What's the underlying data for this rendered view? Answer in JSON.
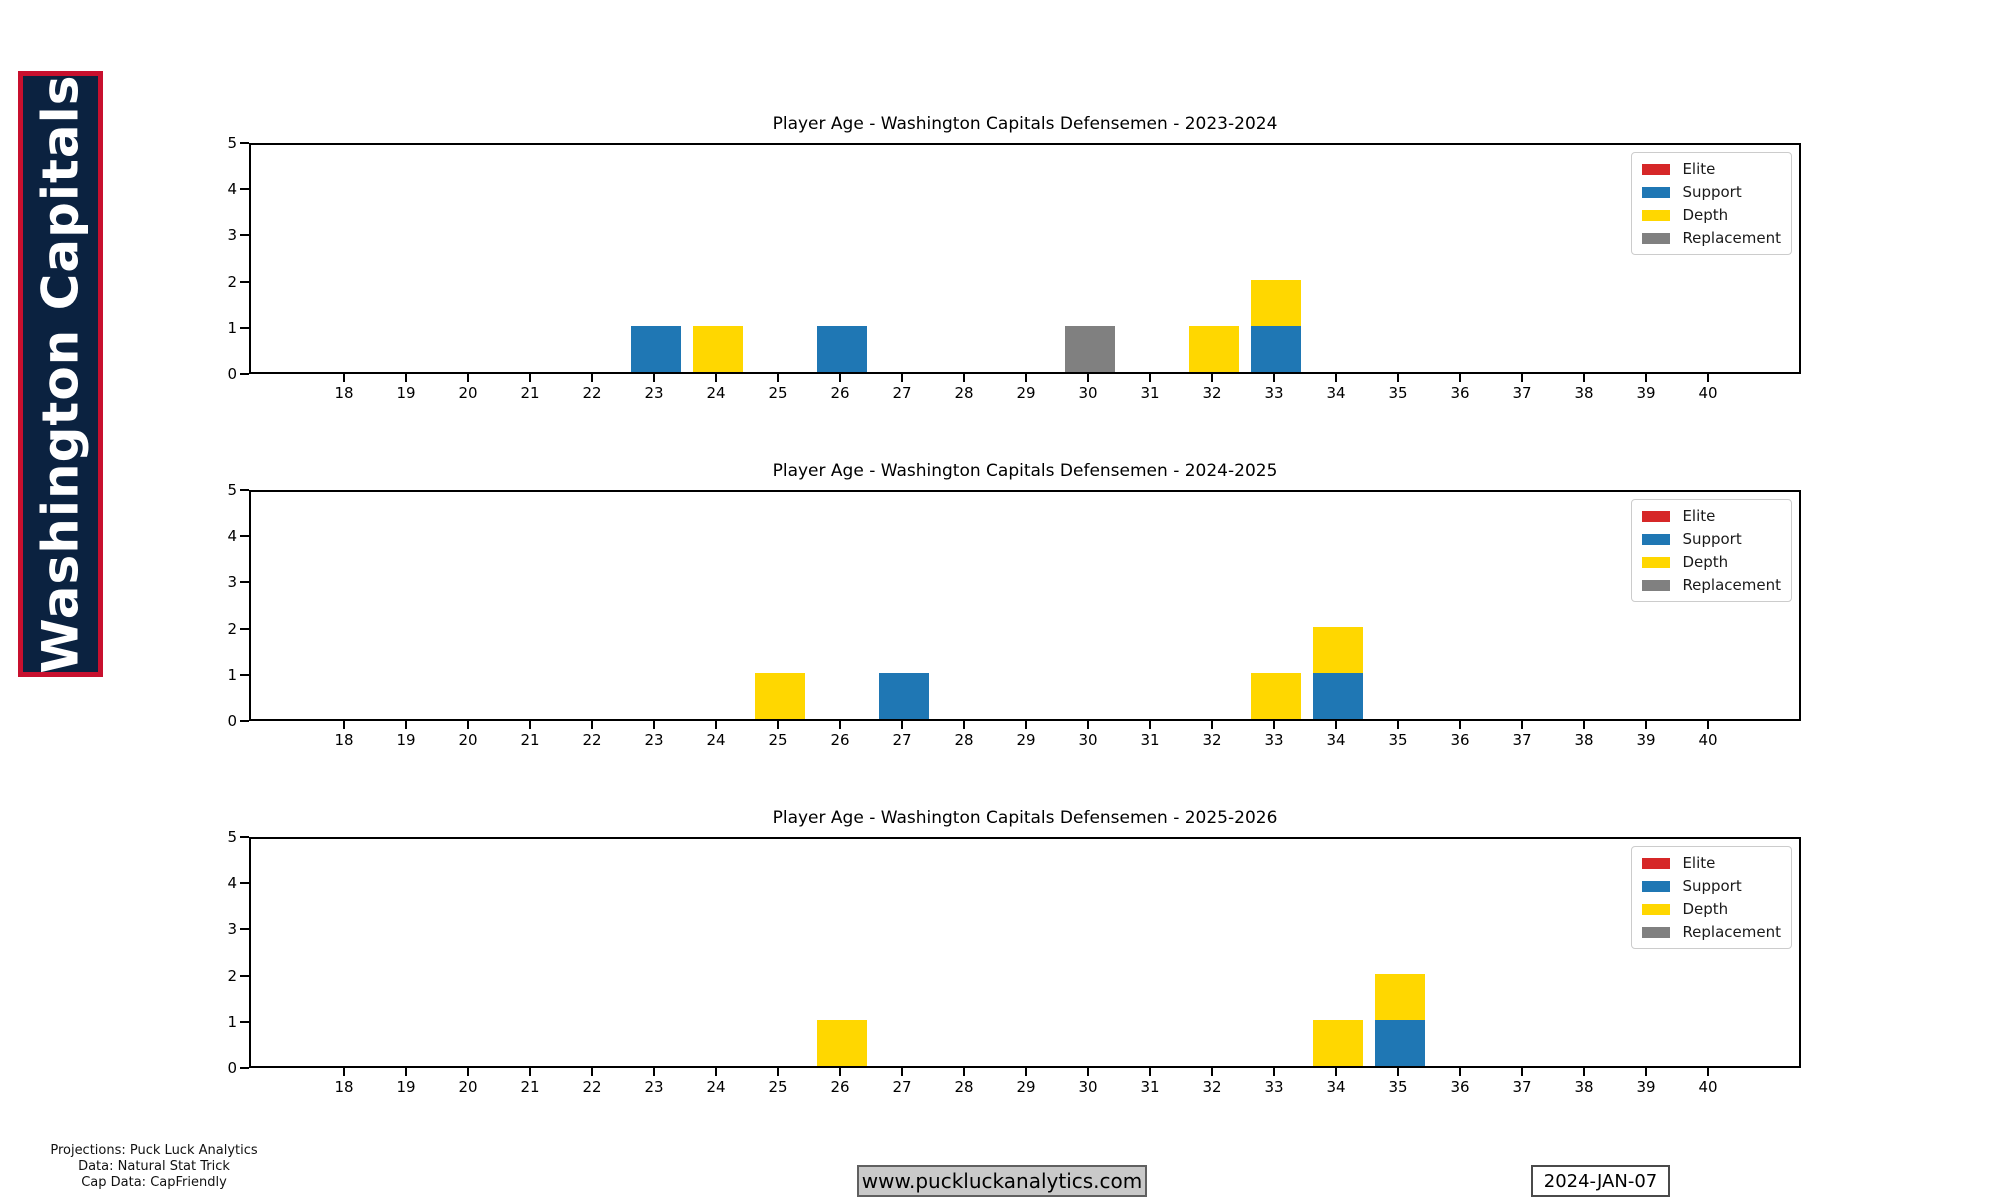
{
  "banner": {
    "text": "Washington Capitals",
    "bg_color": "#0b2240",
    "border_color": "#c8102e",
    "text_color": "#ffffff"
  },
  "colors": {
    "Elite": "#d62728",
    "Support": "#1f77b4",
    "Depth": "#ffd700",
    "Replacement": "#808080"
  },
  "chart_data": [
    {
      "type": "bar",
      "stacked": true,
      "title": "Player Age - Washington Capitals Defensemen - 2023-2024",
      "xlabel": "",
      "ylabel": "",
      "ylim": [
        0,
        5
      ],
      "yticks": [
        0,
        1,
        2,
        3,
        4,
        5
      ],
      "xticks": [
        18,
        19,
        20,
        21,
        22,
        23,
        24,
        25,
        26,
        27,
        28,
        29,
        30,
        31,
        32,
        33,
        34,
        35,
        36,
        37,
        38,
        39,
        40
      ],
      "grid": false,
      "legend": [
        "Elite",
        "Support",
        "Depth",
        "Replacement"
      ],
      "legend_position": "upper right",
      "bars": [
        {
          "age": 23,
          "segments": [
            {
              "category": "Support",
              "value": 1
            }
          ]
        },
        {
          "age": 24,
          "segments": [
            {
              "category": "Depth",
              "value": 1
            }
          ]
        },
        {
          "age": 26,
          "segments": [
            {
              "category": "Support",
              "value": 1
            }
          ]
        },
        {
          "age": 30,
          "segments": [
            {
              "category": "Replacement",
              "value": 1
            }
          ]
        },
        {
          "age": 32,
          "segments": [
            {
              "category": "Depth",
              "value": 1
            }
          ]
        },
        {
          "age": 33,
          "segments": [
            {
              "category": "Support",
              "value": 1
            },
            {
              "category": "Depth",
              "value": 1
            }
          ]
        }
      ]
    },
    {
      "type": "bar",
      "stacked": true,
      "title": "Player Age - Washington Capitals Defensemen - 2024-2025",
      "xlabel": "",
      "ylabel": "",
      "ylim": [
        0,
        5
      ],
      "yticks": [
        0,
        1,
        2,
        3,
        4,
        5
      ],
      "xticks": [
        18,
        19,
        20,
        21,
        22,
        23,
        24,
        25,
        26,
        27,
        28,
        29,
        30,
        31,
        32,
        33,
        34,
        35,
        36,
        37,
        38,
        39,
        40
      ],
      "grid": false,
      "legend": [
        "Elite",
        "Support",
        "Depth",
        "Replacement"
      ],
      "legend_position": "upper right",
      "bars": [
        {
          "age": 25,
          "segments": [
            {
              "category": "Depth",
              "value": 1
            }
          ]
        },
        {
          "age": 27,
          "segments": [
            {
              "category": "Support",
              "value": 1
            }
          ]
        },
        {
          "age": 33,
          "segments": [
            {
              "category": "Depth",
              "value": 1
            }
          ]
        },
        {
          "age": 34,
          "segments": [
            {
              "category": "Support",
              "value": 1
            },
            {
              "category": "Depth",
              "value": 1
            }
          ]
        }
      ]
    },
    {
      "type": "bar",
      "stacked": true,
      "title": "Player Age - Washington Capitals Defensemen - 2025-2026",
      "xlabel": "",
      "ylabel": "",
      "ylim": [
        0,
        5
      ],
      "yticks": [
        0,
        1,
        2,
        3,
        4,
        5
      ],
      "xticks": [
        18,
        19,
        20,
        21,
        22,
        23,
        24,
        25,
        26,
        27,
        28,
        29,
        30,
        31,
        32,
        33,
        34,
        35,
        36,
        37,
        38,
        39,
        40
      ],
      "grid": false,
      "legend": [
        "Elite",
        "Support",
        "Depth",
        "Replacement"
      ],
      "legend_position": "upper right",
      "bars": [
        {
          "age": 26,
          "segments": [
            {
              "category": "Depth",
              "value": 1
            }
          ]
        },
        {
          "age": 34,
          "segments": [
            {
              "category": "Depth",
              "value": 1
            }
          ]
        },
        {
          "age": 35,
          "segments": [
            {
              "category": "Support",
              "value": 1
            },
            {
              "category": "Depth",
              "value": 1
            }
          ]
        }
      ]
    }
  ],
  "footer": {
    "credits_lines": [
      "Projections: Puck Luck Analytics",
      "Data: Natural Stat Trick",
      "Cap Data: CapFriendly"
    ],
    "website": "www.puckluckanalytics.com",
    "date": "2024-JAN-07"
  }
}
